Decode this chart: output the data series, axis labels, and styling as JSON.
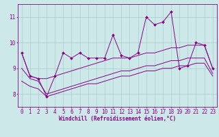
{
  "title": "",
  "xlabel": "Windchill (Refroidissement éolien,°C)",
  "ylabel": "",
  "background_color": "#cce8e8",
  "line_color": "#880088",
  "grid_color": "#aacccc",
  "xlim": [
    -0.5,
    23.5
  ],
  "ylim": [
    7.5,
    11.5
  ],
  "xticks": [
    0,
    1,
    2,
    3,
    4,
    5,
    6,
    7,
    8,
    9,
    10,
    11,
    12,
    13,
    14,
    15,
    16,
    17,
    18,
    19,
    20,
    21,
    22,
    23
  ],
  "yticks": [
    8,
    9,
    10,
    11
  ],
  "line1_x": [
    0,
    1,
    2,
    3,
    4,
    5,
    6,
    7,
    8,
    9,
    10,
    11,
    12,
    13,
    14,
    15,
    16,
    17,
    18,
    19,
    20,
    21,
    22,
    23
  ],
  "line1_y": [
    9.6,
    8.7,
    8.6,
    7.9,
    8.7,
    9.6,
    9.4,
    9.6,
    9.4,
    9.4,
    9.4,
    10.3,
    9.5,
    9.4,
    9.6,
    11.0,
    10.7,
    10.8,
    11.2,
    9.0,
    9.1,
    10.0,
    9.9,
    9.0
  ],
  "line2_x": [
    0,
    1,
    2,
    3,
    4,
    5,
    6,
    7,
    8,
    9,
    10,
    11,
    12,
    13,
    14,
    15,
    16,
    17,
    18,
    19,
    20,
    21,
    22,
    23
  ],
  "line2_y": [
    9.6,
    8.7,
    8.6,
    8.6,
    8.7,
    8.8,
    8.9,
    9.0,
    9.1,
    9.2,
    9.3,
    9.4,
    9.4,
    9.4,
    9.5,
    9.6,
    9.6,
    9.7,
    9.8,
    9.8,
    9.9,
    9.9,
    9.9,
    9.0
  ],
  "line3_x": [
    0,
    1,
    2,
    3,
    4,
    5,
    6,
    7,
    8,
    9,
    10,
    11,
    12,
    13,
    14,
    15,
    16,
    17,
    18,
    19,
    20,
    21,
    22,
    23
  ],
  "line3_y": [
    9.0,
    8.6,
    8.5,
    8.0,
    8.1,
    8.2,
    8.3,
    8.4,
    8.5,
    8.6,
    8.7,
    8.8,
    8.9,
    8.9,
    9.0,
    9.1,
    9.1,
    9.2,
    9.3,
    9.3,
    9.4,
    9.4,
    9.4,
    8.8
  ],
  "line4_x": [
    0,
    1,
    2,
    3,
    4,
    5,
    6,
    7,
    8,
    9,
    10,
    11,
    12,
    13,
    14,
    15,
    16,
    17,
    18,
    19,
    20,
    21,
    22,
    23
  ],
  "line4_y": [
    8.5,
    8.3,
    8.2,
    7.9,
    8.0,
    8.1,
    8.2,
    8.3,
    8.4,
    8.4,
    8.5,
    8.6,
    8.7,
    8.7,
    8.8,
    8.9,
    8.9,
    9.0,
    9.0,
    9.1,
    9.1,
    9.2,
    9.2,
    8.7
  ],
  "tick_fontsize": 5.5,
  "xlabel_fontsize": 5.5
}
